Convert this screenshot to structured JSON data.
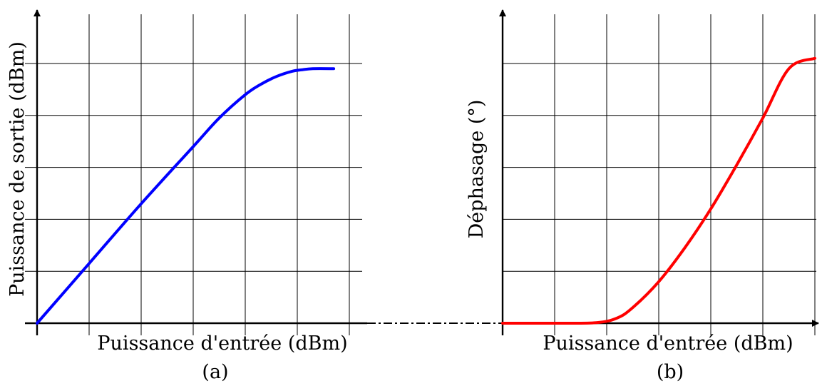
{
  "chart_data": [
    {
      "type": "line",
      "panel_label": "(a)",
      "xlabel": "Puissance d'entrée (dBm)",
      "ylabel": "Puissance de sortie (dBm)",
      "xlim": [
        0,
        6.25
      ],
      "ylim": [
        0,
        5.25
      ],
      "grid": true,
      "tick_labels": false,
      "series": [
        {
          "color": "#0000ff",
          "points": [
            [
              0,
              0
            ],
            [
              1,
              1.15
            ],
            [
              2,
              2.3
            ],
            [
              3,
              3.4
            ],
            [
              3.5,
              3.95
            ],
            [
              4,
              4.4
            ],
            [
              4.3,
              4.6
            ],
            [
              4.6,
              4.75
            ],
            [
              4.9,
              4.85
            ],
            [
              5.1,
              4.88
            ],
            [
              5.3,
              4.9
            ],
            [
              5.7,
              4.9
            ]
          ]
        }
      ]
    },
    {
      "type": "line",
      "panel_label": "(b)",
      "xlabel": "Puissance d'entrée (dBm)",
      "ylabel": "Déphasage (°)",
      "xlim": [
        0,
        6.25
      ],
      "ylim": [
        0,
        5.25
      ],
      "grid": true,
      "tick_labels": false,
      "series": [
        {
          "color": "#ff0000",
          "points": [
            [
              0,
              0
            ],
            [
              1,
              0
            ],
            [
              1.8,
              0.01
            ],
            [
              2.2,
              0.1
            ],
            [
              2.5,
              0.3
            ],
            [
              3,
              0.8
            ],
            [
              3.5,
              1.45
            ],
            [
              4,
              2.2
            ],
            [
              4.5,
              3.05
            ],
            [
              5,
              3.95
            ],
            [
              5.5,
              4.9
            ],
            [
              6,
              5.1
            ]
          ]
        }
      ]
    }
  ]
}
